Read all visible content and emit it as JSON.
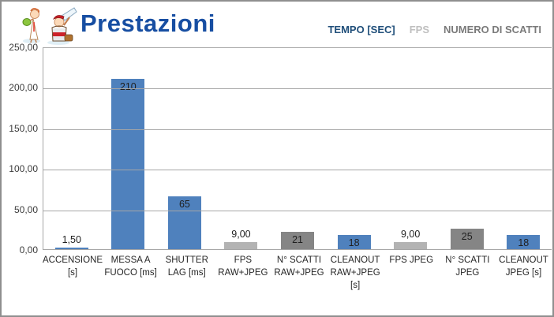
{
  "header": {
    "title": "Prestazioni"
  },
  "legend": {
    "items": [
      {
        "label": "TEMPO [SEC]",
        "color": "#1f4e79"
      },
      {
        "label": "FPS",
        "color": "#bfbfbf"
      },
      {
        "label": "NUMERO DI SCATTI",
        "color": "#7a7a7a"
      }
    ]
  },
  "colors": {
    "title": "#174ea2",
    "bar_blue": "#4f81bd",
    "bar_light_gray": "#b3b3b3",
    "bar_dark_gray": "#858585",
    "gridline": "#a6a6a6",
    "frame_border": "#8f8f8f"
  },
  "chart_data": {
    "type": "bar",
    "title": "Prestazioni",
    "xlabel": "",
    "ylabel": "",
    "ylim": [
      0,
      250
    ],
    "ytick_step": 50,
    "yticks": [
      {
        "value": 0,
        "label": "0,00"
      },
      {
        "value": 50,
        "label": "50,00"
      },
      {
        "value": 100,
        "label": "100,00"
      },
      {
        "value": 150,
        "label": "150,00"
      },
      {
        "value": 200,
        "label": "200,00"
      },
      {
        "value": 250,
        "label": "250,00"
      }
    ],
    "grid": true,
    "legend_position": "top-right",
    "series_names": [
      "TEMPO [SEC]",
      "FPS",
      "NUMERO DI SCATTI"
    ],
    "series_colors": {
      "TEMPO [SEC]": "#4f81bd",
      "FPS": "#b3b3b3",
      "NUMERO DI SCATTI": "#858585"
    },
    "bars": [
      {
        "category": "ACCENSIONE [s]",
        "category_lines": [
          "ACCENSIONE",
          "[s]"
        ],
        "series": "TEMPO [SEC]",
        "value": 1.5,
        "label": "1,50",
        "label_position": "outside"
      },
      {
        "category": "MESSA A FUOCO [ms]",
        "category_lines": [
          "MESSA A",
          "FUOCO [ms]"
        ],
        "series": "TEMPO [SEC]",
        "value": 210,
        "label": "210",
        "label_position": "inside"
      },
      {
        "category": "SHUTTER LAG [ms]",
        "category_lines": [
          "SHUTTER",
          "LAG [ms]"
        ],
        "series": "TEMPO [SEC]",
        "value": 65,
        "label": "65",
        "label_position": "inside"
      },
      {
        "category": "FPS RAW+JPEG",
        "category_lines": [
          "FPS",
          "RAW+JPEG"
        ],
        "series": "FPS",
        "value": 9,
        "label": "9,00",
        "label_position": "outside"
      },
      {
        "category": "N° SCATTI RAW+JPEG",
        "category_lines": [
          "N° SCATTI",
          "RAW+JPEG"
        ],
        "series": "NUMERO DI SCATTI",
        "value": 21,
        "label": "21",
        "label_position": "inside"
      },
      {
        "category": "CLEANOUT RAW+JPEG [s]",
        "category_lines": [
          "CLEANOUT",
          "RAW+JPEG",
          "[s]"
        ],
        "series": "TEMPO [SEC]",
        "value": 18,
        "label": "18",
        "label_position": "inside"
      },
      {
        "category": "FPS JPEG",
        "category_lines": [
          "FPS JPEG"
        ],
        "series": "FPS",
        "value": 9,
        "label": "9,00",
        "label_position": "outside"
      },
      {
        "category": "N° SCATTI JPEG",
        "category_lines": [
          "N° SCATTI",
          "JPEG"
        ],
        "series": "NUMERO DI SCATTI",
        "value": 25,
        "label": "25",
        "label_position": "inside"
      },
      {
        "category": "CLEANOUT JPEG [s]",
        "category_lines": [
          "CLEANOUT",
          "JPEG [s]"
        ],
        "series": "TEMPO [SEC]",
        "value": 18,
        "label": "18",
        "label_position": "inside"
      }
    ]
  }
}
